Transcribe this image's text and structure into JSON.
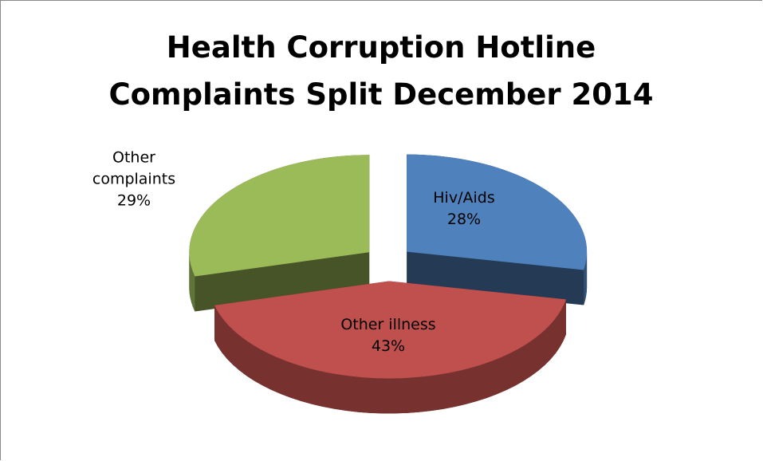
{
  "chart_data": {
    "type": "pie",
    "title": "Health Corruption Hotline Complaints Split December 2014",
    "categories": [
      "Hiv/Aids",
      "Other illness",
      "Other complaints"
    ],
    "values": [
      28,
      43,
      29
    ],
    "value_labels": [
      "28%",
      "43%",
      "29%"
    ],
    "colors": [
      "#4f81bd",
      "#c0504d",
      "#9bbb59"
    ]
  }
}
